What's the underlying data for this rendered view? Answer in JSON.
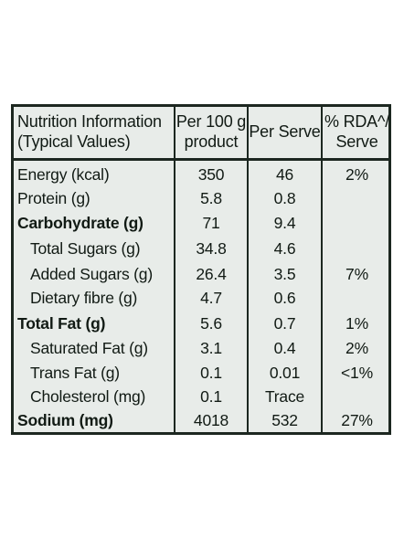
{
  "header": {
    "col1_line1": "Nutrition Information",
    "col1_line2": "(Typical Values)",
    "col2_line1": "Per 100 g",
    "col2_line2": "product",
    "col3": "Per Serve",
    "col4_line1": "% RDA^/",
    "col4_line2": "Serve"
  },
  "rows": [
    {
      "label": "Energy (kcal)",
      "per100": "350",
      "serve": "46",
      "rda": "2%"
    },
    {
      "label": "Protein (g)",
      "per100": "5.8",
      "serve": "0.8",
      "rda": ""
    },
    {
      "label": "Carbohydrate (g)",
      "per100": "71",
      "serve": "9.4",
      "rda": ""
    },
    {
      "label": "Total Sugars (g)",
      "per100": "34.8",
      "serve": "4.6",
      "rda": ""
    },
    {
      "label": "Added Sugars (g)",
      "per100": "26.4",
      "serve": "3.5",
      "rda": "7%"
    },
    {
      "label": "Dietary fibre (g)",
      "per100": "4.7",
      "serve": "0.6",
      "rda": ""
    },
    {
      "label": "Total Fat (g)",
      "per100": "5.6",
      "serve": "0.7",
      "rda": "1%"
    },
    {
      "label": "Saturated Fat (g)",
      "per100": "3.1",
      "serve": "0.4",
      "rda": "2%"
    },
    {
      "label": "Trans Fat (g)",
      "per100": "0.1",
      "serve": "0.01",
      "rda": "<1%"
    },
    {
      "label": "Cholesterol (mg)",
      "per100": "0.1",
      "serve": "Trace",
      "rda": ""
    },
    {
      "label": "Sodium (mg)",
      "per100": "4018",
      "serve": "532",
      "rda": "27%"
    }
  ]
}
